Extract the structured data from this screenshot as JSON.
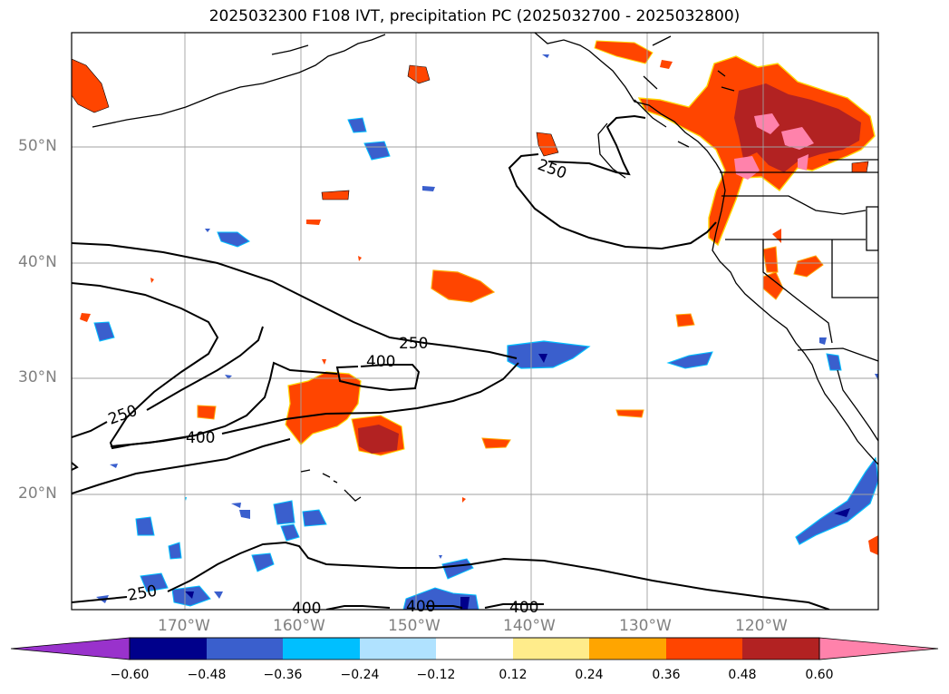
{
  "title": "2025032300 F108 IVT, precipitation PC (2025032700 - 2025032800)",
  "map": {
    "lat_labels": [
      "50°N",
      "40°N",
      "30°N",
      "20°N"
    ],
    "lon_labels": [
      "170°W",
      "160°W",
      "150°W",
      "140°W",
      "130°W",
      "120°W"
    ],
    "ivt_contour_labels": [
      "250",
      "400",
      "250",
      "400",
      "250",
      "400",
      "400",
      "400",
      "250"
    ],
    "extent": {
      "lon_min": -178,
      "lon_max": -108,
      "lat_min": 10,
      "lat_max": 60
    }
  },
  "colorbar": {
    "ticks": [
      "−0.60",
      "−0.48",
      "−0.36",
      "−0.24",
      "−0.12",
      "0.12",
      "0.24",
      "0.36",
      "0.48",
      "0.60"
    ],
    "colors": [
      "#9932cc",
      "#00008b",
      "#3a5fcd",
      "#00bfff",
      "#b0e2ff",
      "#ffffff",
      "#ffec8b",
      "#ffa500",
      "#ff4500",
      "#b22222",
      "#ff82ab"
    ]
  }
}
